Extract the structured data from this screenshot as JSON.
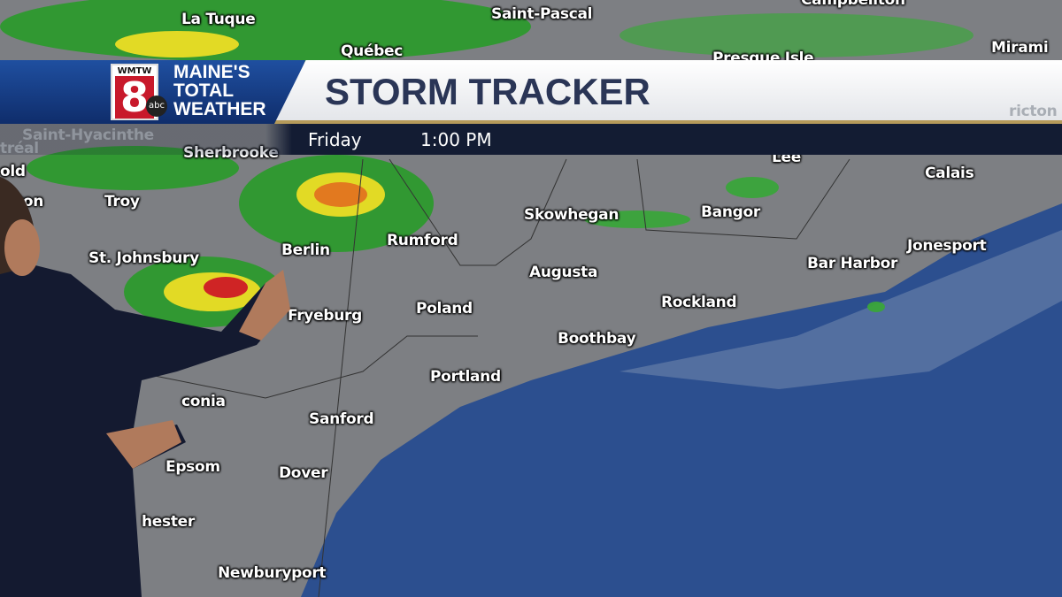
{
  "broadcast": {
    "station_logo": {
      "call_sign": "WMTW",
      "channel": "8",
      "network": "abc"
    },
    "brand": [
      "MAINE'S",
      "TOTAL",
      "WEATHER"
    ],
    "title": "STORM TRACKER",
    "day": "Friday",
    "time": "1:00 PM"
  },
  "colors": {
    "banner_blue": "#1f4fa0",
    "title_text": "#2a3556",
    "subbar": "#131c33",
    "accent_gold": "#b59a5a",
    "ocean": "#2c4f8f",
    "land": "#7d7f83",
    "radar_green": "#2e9a2e",
    "radar_yellow": "#e8e020",
    "radar_orange": "#e87a1a",
    "radar_red": "#d42020"
  },
  "map": {
    "cities": [
      "La Tuque",
      "Saint-Pascal",
      "Campbellton",
      "Québec",
      "Presque Isle",
      "Mirami",
      "Saint-Hyacinthe",
      "tréal",
      "Sherbrooke",
      "Lee",
      "Calais",
      "old",
      "ton",
      "Troy",
      "Skowhegan",
      "Bangor",
      "Rumford",
      "St. Johnsbury",
      "Berlin",
      "Jonesport",
      "Bar Harbor",
      "Augusta",
      "Rockland",
      "Poland",
      "Fryeburg",
      "Boothbay",
      "Portland",
      "conia",
      "Sanford",
      "Epsom",
      "Dover",
      "hester",
      "Newburyport",
      "ricton"
    ]
  }
}
